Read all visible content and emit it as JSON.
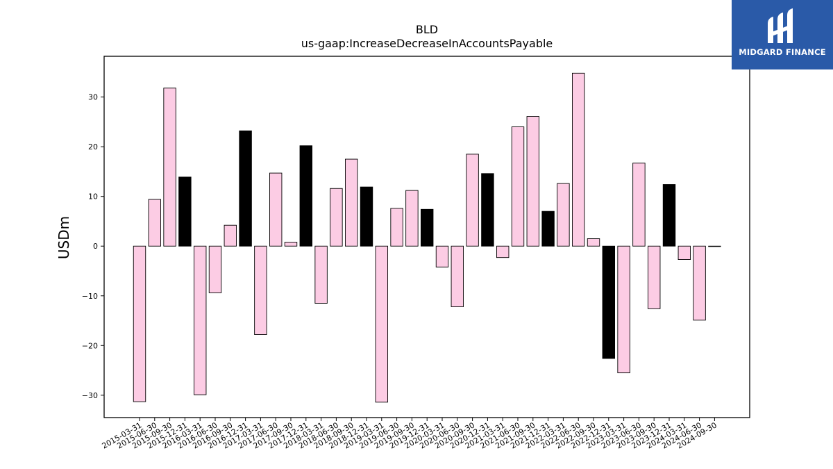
{
  "chart_data": {
    "type": "bar",
    "title": "BLD",
    "subtitle": "us-gaap:IncreaseDecreaseInAccountsPayable",
    "ylabel": "USDm",
    "xlabel": "",
    "ylim": [
      -34.5,
      38.2
    ],
    "yticks": [
      -30,
      -20,
      -10,
      0,
      10,
      20,
      30
    ],
    "ytick_labels": [
      "−30",
      "−20",
      "−10",
      "0",
      "10",
      "20",
      "30"
    ],
    "grid": false,
    "colors": {
      "quarter": "#fccce4",
      "q4": "#000000",
      "edge": "#000000"
    },
    "categories": [
      "2015-03-31",
      "2015-06-30",
      "2015-09-30",
      "2015-12-31",
      "2016-03-31",
      "2016-06-30",
      "2016-09-30",
      "2016-12-31",
      "2017-03-31",
      "2017-06-30",
      "2017-09-30",
      "2017-12-31",
      "2018-03-31",
      "2018-06-30",
      "2018-09-30",
      "2018-12-31",
      "2019-03-31",
      "2019-06-30",
      "2019-09-30",
      "2019-12-31",
      "2020-03-31",
      "2020-06-30",
      "2020-09-30",
      "2020-12-31",
      "2021-03-31",
      "2021-06-30",
      "2021-09-30",
      "2021-12-31",
      "2022-03-31",
      "2022-06-30",
      "2022-09-30",
      "2022-12-31",
      "2023-03-31",
      "2023-06-30",
      "2023-09-30",
      "2023-12-31",
      "2024-03-31",
      "2024-06-30",
      "2024-09-30"
    ],
    "values": [
      -31.3,
      9.4,
      31.8,
      13.9,
      -29.9,
      -9.4,
      4.2,
      23.2,
      -17.8,
      14.7,
      0.8,
      20.2,
      -11.5,
      11.6,
      17.5,
      11.9,
      -31.4,
      7.6,
      11.2,
      7.4,
      -4.2,
      -12.2,
      18.5,
      14.6,
      -2.3,
      24.0,
      26.1,
      7.0,
      12.6,
      34.8,
      1.5,
      -22.6,
      -25.5,
      16.7,
      -12.6,
      12.4,
      -2.7,
      -14.9,
      0.0
    ]
  },
  "logo": {
    "text": "MIDGARD FINANCE"
  }
}
